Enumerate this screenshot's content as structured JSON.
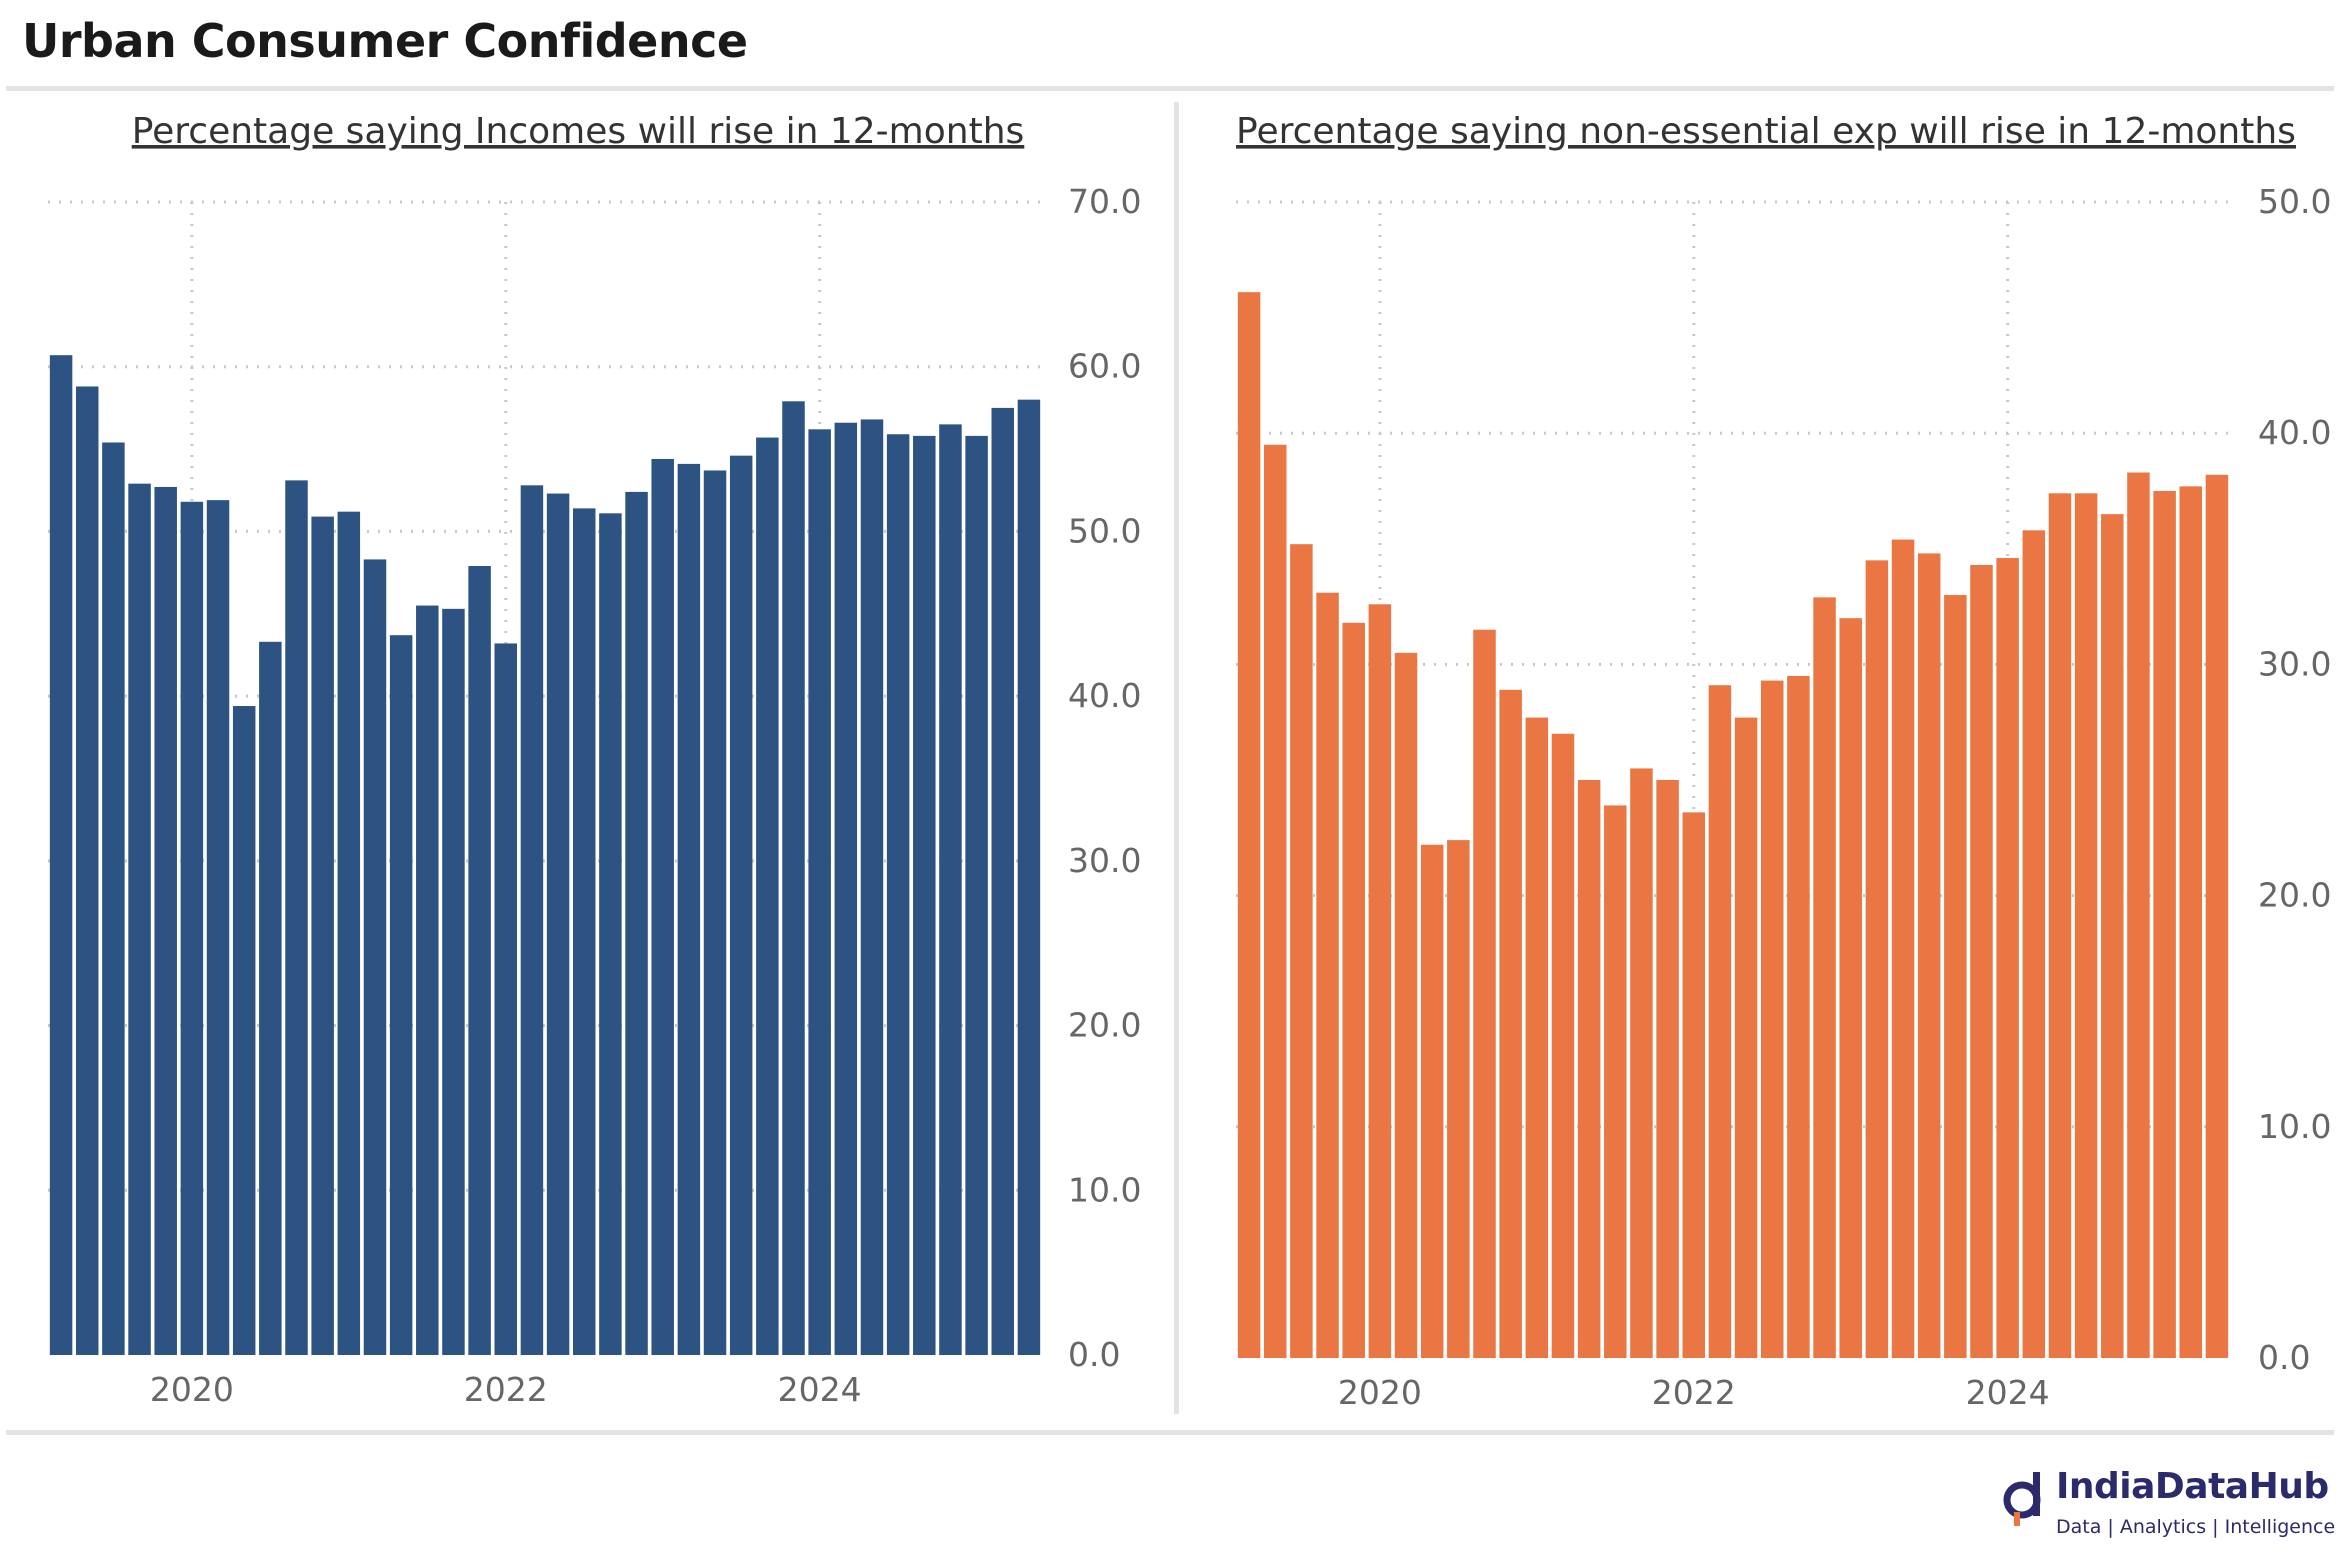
{
  "page_title": "Urban Consumer Confidence",
  "brand": {
    "name": "IndiaDataHub",
    "tagline": "Data | Analytics | Intelligence"
  },
  "colors": {
    "incomes": "#2d5383",
    "expenditure": "#e97643",
    "grid": "#c8c8c8",
    "tick": "#666666"
  },
  "chart_data": [
    {
      "type": "bar",
      "title": "Percentage saying Incomes will rise in 12-months",
      "x_tick_labels": [
        "2020",
        "2022",
        "2024"
      ],
      "y_tick_labels": [
        "0.0",
        "10.0",
        "20.0",
        "30.0",
        "40.0",
        "50.0",
        "60.0",
        "70.0"
      ],
      "ylim": [
        0,
        70
      ],
      "y_axis_side": "right",
      "grid": true,
      "values": [
        60.7,
        58.8,
        55.4,
        52.9,
        52.7,
        51.8,
        51.9,
        39.4,
        43.3,
        53.1,
        50.9,
        51.2,
        48.3,
        43.7,
        45.5,
        45.3,
        47.9,
        43.2,
        52.8,
        52.3,
        51.4,
        51.1,
        52.4,
        54.4,
        54.1,
        53.7,
        54.6,
        55.7,
        57.9,
        56.2,
        56.6,
        56.8,
        55.9,
        55.8,
        56.5,
        55.8,
        57.5,
        58.0
      ],
      "year_tick_indices": [
        5,
        17,
        29
      ]
    },
    {
      "type": "bar",
      "title": "Percentage saying non-essential exp will rise in 12-months",
      "x_tick_labels": [
        "2020",
        "2022",
        "2024"
      ],
      "y_tick_labels": [
        "0.0",
        "10.0",
        "20.0",
        "30.0",
        "40.0",
        "50.0"
      ],
      "ylim": [
        0,
        50
      ],
      "y_axis_side": "right",
      "grid": true,
      "values": [
        46.1,
        39.5,
        35.2,
        33.1,
        31.8,
        32.6,
        30.5,
        22.2,
        22.4,
        31.5,
        28.9,
        27.7,
        27.0,
        25.0,
        23.9,
        25.5,
        25.0,
        23.6,
        29.1,
        27.7,
        29.3,
        29.5,
        32.9,
        32.0,
        34.5,
        35.4,
        34.8,
        33.0,
        34.3,
        34.6,
        35.8,
        37.4,
        37.4,
        36.5,
        38.3,
        37.5,
        37.7,
        38.2
      ],
      "year_tick_indices": [
        5,
        17,
        29
      ]
    }
  ]
}
